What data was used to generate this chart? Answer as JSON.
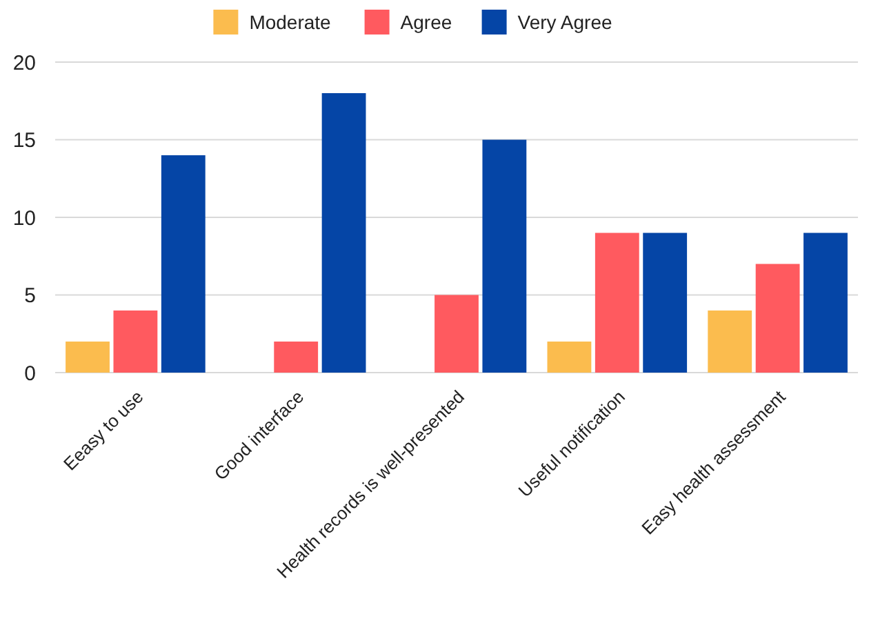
{
  "chart_data": {
    "type": "bar",
    "categories": [
      "Eeasy to use",
      "Good interface",
      "Health records is well-presented",
      "Useful notification",
      "Easy health assessment"
    ],
    "series": [
      {
        "name": "Moderate",
        "color": "#fbbc4e",
        "values": [
          2,
          0,
          0,
          2,
          4
        ]
      },
      {
        "name": "Agree",
        "color": "#ff5a5f",
        "values": [
          4,
          2,
          5,
          9,
          7
        ]
      },
      {
        "name": "Very Agree",
        "color": "#0545a6",
        "values": [
          14,
          18,
          15,
          9,
          9
        ]
      }
    ],
    "ylim": [
      0,
      20
    ],
    "yticks": [
      0,
      5,
      10,
      15,
      20
    ],
    "grid": "y",
    "legend": "top"
  }
}
